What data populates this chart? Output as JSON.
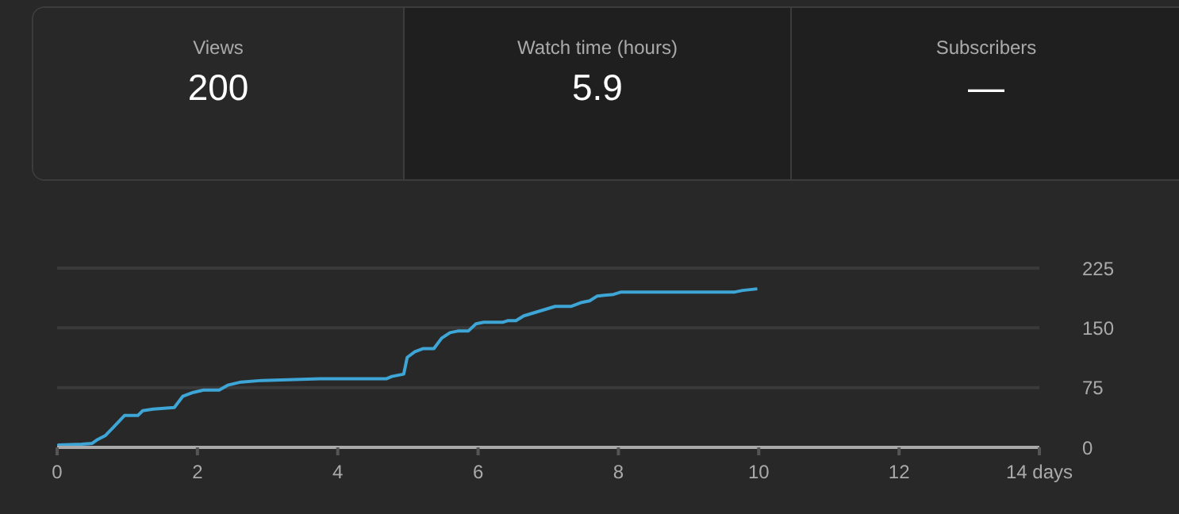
{
  "chart_data": [
    {
      "type": "other",
      "categories": [
        "Views",
        "Watch time (hours)",
        "Subscribers"
      ],
      "value_labels": [
        "200",
        "5.9",
        "—"
      ]
    },
    {
      "type": "line",
      "color": "#3ea6d6",
      "marker": "none",
      "grid": "y",
      "x": [
        0,
        0.02,
        0.35,
        0.5,
        0.58,
        0.69,
        0.8,
        0.96,
        1.15,
        1.22,
        1.37,
        1.67,
        1.79,
        1.94,
        2.09,
        2.31,
        2.43,
        2.62,
        2.92,
        3.75,
        4.69,
        4.77,
        4.94,
        4.99,
        5.1,
        5.22,
        5.37,
        5.48,
        5.6,
        5.71,
        5.86,
        5.97,
        6.08,
        6.35,
        6.42,
        6.54,
        6.65,
        6.8,
        6.95,
        7.1,
        7.33,
        7.48,
        7.59,
        7.7,
        7.93,
        8.04,
        9.66,
        9.77,
        9.98
      ],
      "values": [
        0,
        3,
        4,
        5,
        10,
        15,
        25,
        40,
        40,
        46,
        48,
        50,
        64,
        69,
        72,
        72,
        78,
        82,
        84,
        86,
        86,
        89,
        92,
        113,
        120,
        124,
        124,
        137,
        144,
        146,
        146,
        155,
        157,
        157,
        159,
        159,
        165,
        169,
        173,
        177,
        177,
        182,
        184,
        190,
        192,
        195,
        195,
        197,
        199
      ],
      "xlim": [
        0,
        14
      ],
      "xticks": [
        0,
        2,
        4,
        6,
        8,
        10,
        12,
        {
          "value": 14,
          "label": "14 days"
        }
      ],
      "ylim": [
        0,
        225
      ],
      "yticks": [
        0,
        75,
        150,
        225
      ]
    }
  ]
}
